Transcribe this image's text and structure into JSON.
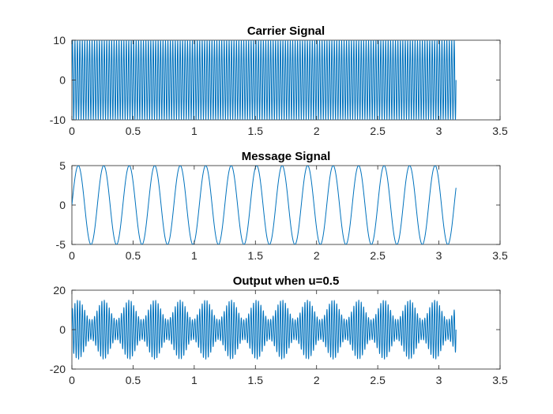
{
  "chart_data": [
    {
      "type": "line",
      "title": "Carrier Signal",
      "xlabel": "",
      "ylabel": "",
      "xlim": [
        0,
        3.5
      ],
      "ylim": [
        -10,
        10
      ],
      "xticks": [
        0,
        0.5,
        1,
        1.5,
        2,
        2.5,
        3,
        3.5
      ],
      "xtick_labels": [
        "0",
        "0.5",
        "1",
        "1.5",
        "2",
        "2.5",
        "3",
        "3.5"
      ],
      "yticks": [
        -10,
        0,
        10
      ],
      "ytick_labels": [
        "-10",
        "0",
        "10"
      ],
      "grid": false,
      "series": [
        {
          "color": "#0072bd",
          "formula": "10*sin(2*pi*50*t)",
          "t_range": [
            0,
            3.14
          ],
          "amplitude": 10,
          "frequency_hz": 50
        }
      ]
    },
    {
      "type": "line",
      "title": "Message Signal",
      "xlabel": "",
      "ylabel": "",
      "xlim": [
        0,
        3.5
      ],
      "ylim": [
        -5,
        5
      ],
      "xticks": [
        0,
        0.5,
        1,
        1.5,
        2,
        2.5,
        3,
        3.5
      ],
      "xtick_labels": [
        "0",
        "0.5",
        "1",
        "1.5",
        "2",
        "2.5",
        "3",
        "3.5"
      ],
      "yticks": [
        -5,
        0,
        5
      ],
      "ytick_labels": [
        "-5",
        "0",
        "5"
      ],
      "grid": false,
      "series": [
        {
          "color": "#0072bd",
          "formula": "5*sin(2*pi*4.8*t)",
          "t_range": [
            0,
            3.14
          ],
          "amplitude": 5,
          "frequency_hz": 4.8
        }
      ]
    },
    {
      "type": "line",
      "title": "Output when u=0.5",
      "xlabel": "",
      "ylabel": "",
      "xlim": [
        0,
        3.5
      ],
      "ylim": [
        -20,
        20
      ],
      "xticks": [
        0,
        0.5,
        1,
        1.5,
        2,
        2.5,
        3,
        3.5
      ],
      "xtick_labels": [
        "0",
        "0.5",
        "1",
        "1.5",
        "2",
        "2.5",
        "3",
        "3.5"
      ],
      "yticks": [
        -20,
        0,
        20
      ],
      "ytick_labels": [
        "-20",
        "0",
        "20"
      ],
      "grid": false,
      "series": [
        {
          "color": "#0072bd",
          "formula": "10*(1+0.5*sin(2*pi*4.8*t))*sin(2*pi*50*t)",
          "t_range": [
            0,
            3.14
          ],
          "modulation_index": 0.5
        }
      ]
    }
  ]
}
